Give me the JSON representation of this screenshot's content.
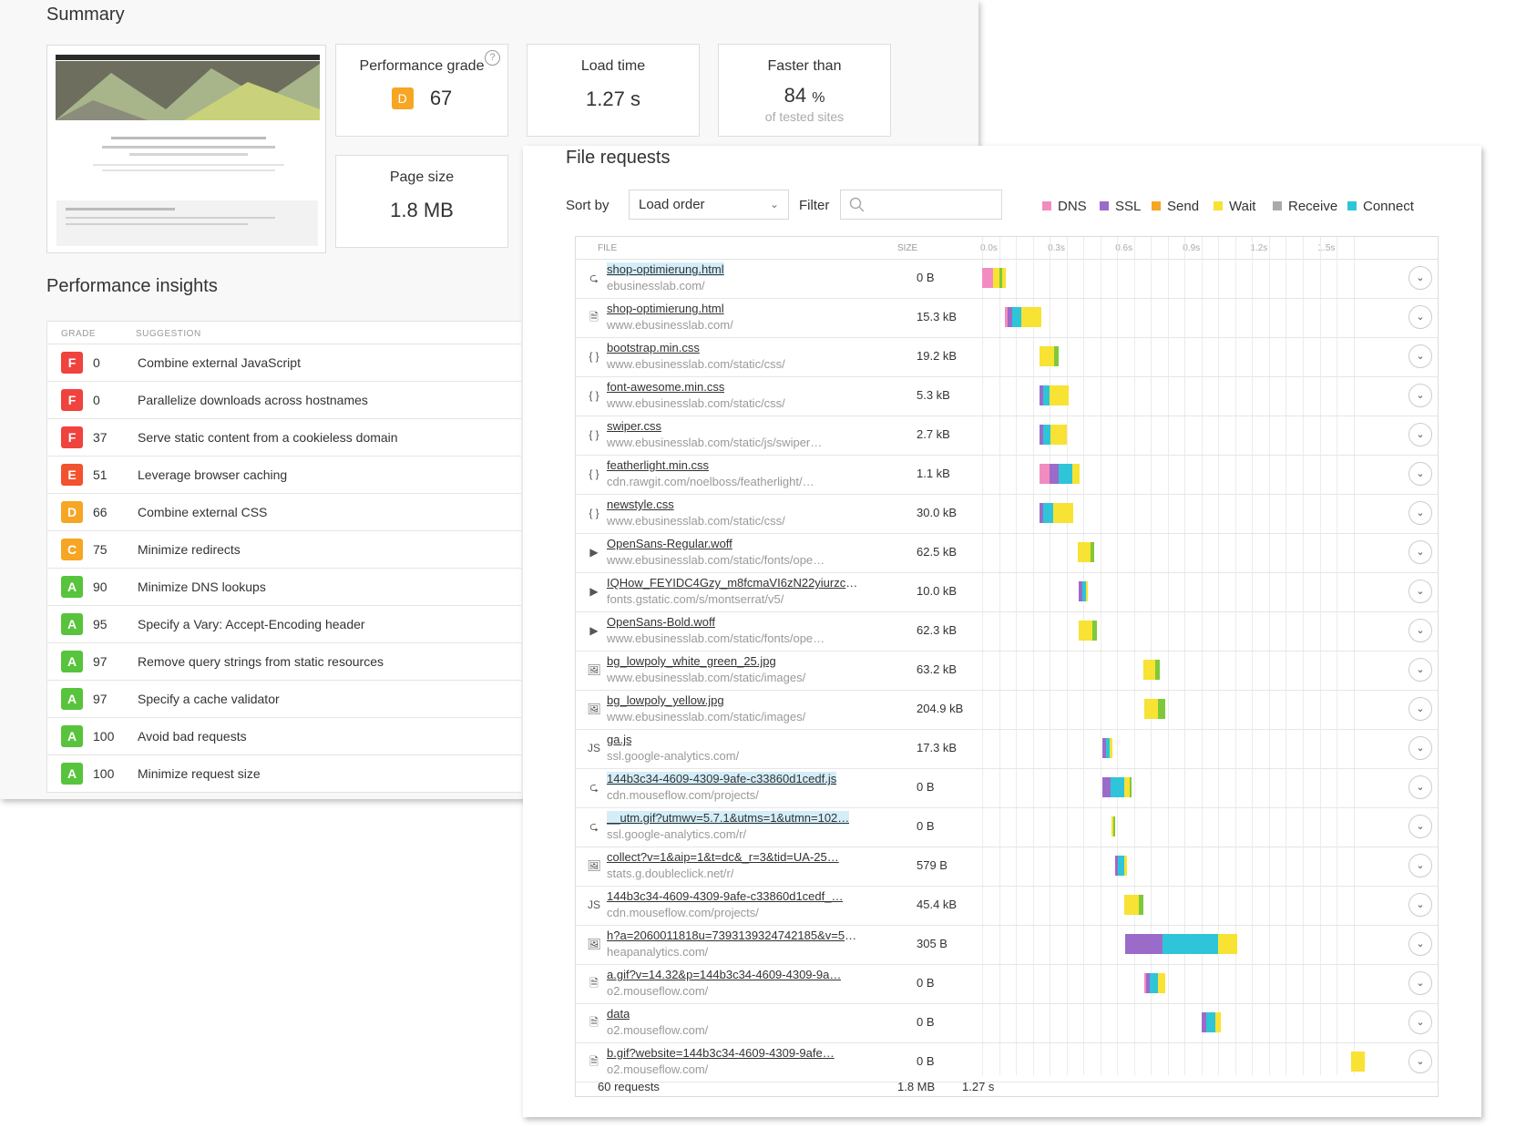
{
  "summary": {
    "title": "Summary",
    "cards": {
      "performance_grade": {
        "label": "Performance grade",
        "grade": "D",
        "score": "67"
      },
      "load_time": {
        "label": "Load time",
        "value": "1.27 s"
      },
      "faster_than": {
        "label": "Faster than",
        "value": "84",
        "unit": "%",
        "sub": "of tested sites"
      },
      "page_size": {
        "label": "Page size",
        "value": "1.8 MB"
      }
    },
    "help_icon": "question-circle-icon"
  },
  "insights": {
    "title": "Performance insights",
    "col_grade": "GRADE",
    "col_suggestion": "SUGGESTION",
    "rows": [
      {
        "grade": "F",
        "score": "0",
        "suggestion": "Combine external JavaScript"
      },
      {
        "grade": "F",
        "score": "0",
        "suggestion": "Parallelize downloads across hostnames"
      },
      {
        "grade": "F",
        "score": "37",
        "suggestion": "Serve static content from a cookieless domain"
      },
      {
        "grade": "E",
        "score": "51",
        "suggestion": "Leverage browser caching"
      },
      {
        "grade": "D",
        "score": "66",
        "suggestion": "Combine external CSS"
      },
      {
        "grade": "C",
        "score": "75",
        "suggestion": "Minimize redirects"
      },
      {
        "grade": "A",
        "score": "90",
        "suggestion": "Minimize DNS lookups"
      },
      {
        "grade": "A",
        "score": "95",
        "suggestion": "Specify a Vary: Accept-Encoding header"
      },
      {
        "grade": "A",
        "score": "97",
        "suggestion": "Remove query strings from static resources"
      },
      {
        "grade": "A",
        "score": "97",
        "suggestion": "Specify a cache validator"
      },
      {
        "grade": "A",
        "score": "100",
        "suggestion": "Avoid bad requests"
      },
      {
        "grade": "A",
        "score": "100",
        "suggestion": "Minimize request size"
      }
    ]
  },
  "grade_colors": {
    "F": "#f0433e",
    "E": "#f2522e",
    "D": "#f6a623",
    "C": "#f6a623",
    "A": "#58c33c"
  },
  "file_requests": {
    "title": "File requests",
    "sort_label": "Sort by",
    "sort_value": "Load order",
    "filter_label": "Filter",
    "legend": [
      {
        "name": "DNS",
        "color": "#f28cc0"
      },
      {
        "name": "SSL",
        "color": "#9b6bc9"
      },
      {
        "name": "Send",
        "color": "#f5a623"
      },
      {
        "name": "Wait",
        "color": "#f8e233"
      },
      {
        "name": "Receive",
        "color": "#aaaaaa"
      },
      {
        "name": "Connect",
        "color": "#2ec5d8"
      }
    ],
    "col_file": "FILE",
    "col_size": "SIZE",
    "ticks": [
      "0.0s",
      "0.3s",
      "0.6s",
      "0.9s",
      "1.2s",
      "1.5s"
    ],
    "rows": [
      {
        "icon": "redirect-icon",
        "glyph": "⮎",
        "name": "shop-optimierung.html",
        "hl": true,
        "host": "ebusinesslab.com/",
        "size": "0 B",
        "start": 0.0,
        "segs": [
          [
            "#f28cc0",
            0.05
          ],
          [
            "#f8e233",
            0.025
          ],
          [
            "#7ec93a",
            0.015
          ],
          [
            "#f8e233",
            0.015
          ]
        ]
      },
      {
        "icon": "document-icon",
        "glyph": "🗎",
        "name": "shop-optimierung.html",
        "hl": false,
        "host": "www.ebusinesslab.com/",
        "size": "15.3 kB",
        "start": 0.1,
        "segs": [
          [
            "#f28cc0",
            0.015
          ],
          [
            "#9b6bc9",
            0.02
          ],
          [
            "#2ec5d8",
            0.04
          ],
          [
            "#f8e233",
            0.09
          ]
        ]
      },
      {
        "icon": "css-icon",
        "glyph": "{ }",
        "name": "bootstrap.min.css",
        "hl": false,
        "host": "www.ebusinesslab.com/static/css/",
        "size": "19.2 kB",
        "start": 0.255,
        "segs": [
          [
            "#f8e233",
            0.065
          ],
          [
            "#7ec93a",
            0.02
          ]
        ]
      },
      {
        "icon": "css-icon",
        "glyph": "{ }",
        "name": "font-awesome.min.css",
        "hl": false,
        "host": "www.ebusinesslab.com/static/css/",
        "size": "5.3 kB",
        "start": 0.255,
        "segs": [
          [
            "#9b6bc9",
            0.015
          ],
          [
            "#2ec5d8",
            0.03
          ],
          [
            "#f8e233",
            0.085
          ]
        ]
      },
      {
        "icon": "css-icon",
        "glyph": "{ }",
        "name": "swiper.css",
        "hl": false,
        "host": "www.ebusinesslab.com/static/js/swiper…",
        "size": "2.7 kB",
        "start": 0.255,
        "segs": [
          [
            "#9b6bc9",
            0.015
          ],
          [
            "#2ec5d8",
            0.035
          ],
          [
            "#f8e233",
            0.07
          ]
        ]
      },
      {
        "icon": "css-icon",
        "glyph": "{ }",
        "name": "featherlight.min.css",
        "hl": false,
        "host": "cdn.rawgit.com/noelboss/featherlight/…",
        "size": "1.1 kB",
        "start": 0.255,
        "segs": [
          [
            "#f28cc0",
            0.045
          ],
          [
            "#9b6bc9",
            0.04
          ],
          [
            "#2ec5d8",
            0.06
          ],
          [
            "#f8e233",
            0.035
          ]
        ]
      },
      {
        "icon": "css-icon",
        "glyph": "{ }",
        "name": "newstyle.css",
        "hl": false,
        "host": "www.ebusinesslab.com/static/css/",
        "size": "30.0 kB",
        "start": 0.255,
        "segs": [
          [
            "#9b6bc9",
            0.015
          ],
          [
            "#2ec5d8",
            0.045
          ],
          [
            "#f8e233",
            0.09
          ]
        ]
      },
      {
        "icon": "font-icon",
        "glyph": "▶",
        "name": "OpenSans-Regular.woff",
        "hl": false,
        "host": "www.ebusinesslab.com/static/fonts/ope…",
        "size": "62.5 kB",
        "start": 0.425,
        "segs": [
          [
            "#f8e233",
            0.055
          ],
          [
            "#7ec93a",
            0.02
          ]
        ]
      },
      {
        "icon": "font-icon",
        "glyph": "▶",
        "name": "IQHow_FEYIDC4Gzy_m8fcmaVI6zN22yiurzcB…",
        "hl": false,
        "host": "fonts.gstatic.com/s/montserrat/v5/",
        "size": "10.0 kB",
        "start": 0.43,
        "segs": [
          [
            "#9b6bc9",
            0.015
          ],
          [
            "#2ec5d8",
            0.015
          ],
          [
            "#f8e233",
            0.01
          ]
        ]
      },
      {
        "icon": "font-icon",
        "glyph": "▶",
        "name": "OpenSans-Bold.woff",
        "hl": false,
        "host": "www.ebusinesslab.com/static/fonts/ope…",
        "size": "62.3 kB",
        "start": 0.43,
        "segs": [
          [
            "#f8e233",
            0.06
          ],
          [
            "#7ec93a",
            0.02
          ]
        ]
      },
      {
        "icon": "image-icon",
        "glyph": "🖼",
        "name": "bg_lowpoly_white_green_25.jpg",
        "hl": false,
        "host": "www.ebusinesslab.com/static/images/",
        "size": "63.2 kB",
        "start": 0.715,
        "segs": [
          [
            "#f8e233",
            0.055
          ],
          [
            "#7ec93a",
            0.02
          ]
        ]
      },
      {
        "icon": "image-icon",
        "glyph": "🖼",
        "name": "bg_lowpoly_yellow.jpg",
        "hl": false,
        "host": "www.ebusinesslab.com/static/images/",
        "size": "204.9 kB",
        "start": 0.72,
        "segs": [
          [
            "#f8e233",
            0.06
          ],
          [
            "#7ec93a",
            0.035
          ]
        ]
      },
      {
        "icon": "javascript-icon",
        "glyph": "JS",
        "name": "ga.js",
        "hl": false,
        "host": "ssl.google-analytics.com/",
        "size": "17.3 kB",
        "start": 0.535,
        "segs": [
          [
            "#9b6bc9",
            0.015
          ],
          [
            "#2ec5d8",
            0.015
          ],
          [
            "#f8e233",
            0.015
          ]
        ]
      },
      {
        "icon": "redirect-icon",
        "glyph": "⮎",
        "name": "144b3c34-4609-4309-9afe-c33860d1cedf.js",
        "hl": true,
        "host": "cdn.mouseflow.com/projects/",
        "size": "0 B",
        "start": 0.535,
        "segs": [
          [
            "#9b6bc9",
            0.035
          ],
          [
            "#2ec5d8",
            0.06
          ],
          [
            "#f8e233",
            0.025
          ],
          [
            "#7ec93a",
            0.01
          ]
        ]
      },
      {
        "icon": "redirect-icon",
        "glyph": "⮎",
        "name": "__utm.gif?utmwv=5.7.1&utms=1&utmn=102…",
        "hl": true,
        "host": "ssl.google-analytics.com/r/",
        "size": "0 B",
        "start": 0.575,
        "segs": [
          [
            "#f8e233",
            0.01
          ],
          [
            "#7ec93a",
            0.008
          ]
        ]
      },
      {
        "icon": "image-icon",
        "glyph": "🖼",
        "name": "collect?v=1&aip=1&t=dc&_r=3&tid=UA-25…",
        "hl": false,
        "host": "stats.g.doubleclick.net/r/",
        "size": "579 B",
        "start": 0.59,
        "segs": [
          [
            "#9b6bc9",
            0.015
          ],
          [
            "#2ec5d8",
            0.025
          ],
          [
            "#f8e233",
            0.015
          ]
        ]
      },
      {
        "icon": "javascript-icon",
        "glyph": "JS",
        "name": "144b3c34-4609-4309-9afe-c33860d1cedf_…",
        "hl": false,
        "host": "cdn.mouseflow.com/projects/",
        "size": "45.4 kB",
        "start": 0.63,
        "segs": [
          [
            "#f8e233",
            0.065
          ],
          [
            "#7ec93a",
            0.02
          ]
        ]
      },
      {
        "icon": "image-icon",
        "glyph": "🖼",
        "name": "h?a=2060011818u=7393139324742185&v=58…",
        "hl": false,
        "host": "heapanalytics.com/",
        "size": "305 B",
        "start": 0.635,
        "segs": [
          [
            "#9b6bc9",
            0.165
          ],
          [
            "#2ec5d8",
            0.25
          ],
          [
            "#f8e233",
            0.085
          ]
        ]
      },
      {
        "icon": "document-icon",
        "glyph": "🗎",
        "name": "a.gif?v=14.32&p=144b3c34-4609-4309-9a…",
        "hl": false,
        "host": "o2.mouseflow.com/",
        "size": "0 B",
        "start": 0.72,
        "segs": [
          [
            "#f28cc0",
            0.01
          ],
          [
            "#9b6bc9",
            0.015
          ],
          [
            "#2ec5d8",
            0.035
          ],
          [
            "#f8e233",
            0.035
          ]
        ]
      },
      {
        "icon": "document-icon",
        "glyph": "🗎",
        "name": "data",
        "hl": false,
        "host": "o2.mouseflow.com/",
        "size": "0 B",
        "start": 0.975,
        "segs": [
          [
            "#9b6bc9",
            0.02
          ],
          [
            "#2ec5d8",
            0.04
          ],
          [
            "#f8e233",
            0.025
          ]
        ]
      },
      {
        "icon": "document-icon",
        "glyph": "🗎",
        "name": "b.gif?website=144b3c34-4609-4309-9afe…",
        "hl": false,
        "host": "o2.mouseflow.com/",
        "size": "0 B",
        "start": 1.64,
        "segs": [
          [
            "#f8e233",
            0.06
          ]
        ]
      }
    ],
    "footer": {
      "requests": "60 requests",
      "size": "1.8 MB",
      "time": "1.27 s"
    }
  }
}
